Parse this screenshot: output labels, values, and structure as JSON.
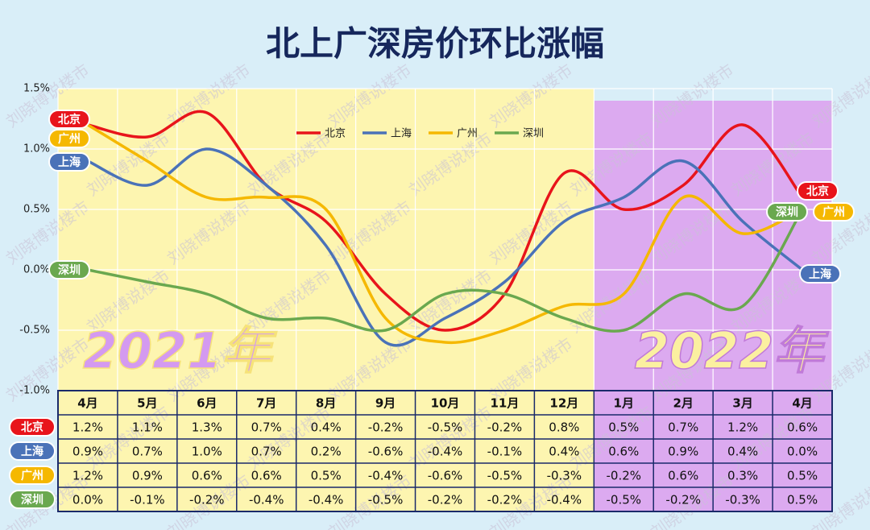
{
  "chart_data": {
    "type": "line",
    "title": "北上广深房价环比涨幅",
    "categories": [
      "4月",
      "5月",
      "6月",
      "7月",
      "8月",
      "9月",
      "10月",
      "11月",
      "12月",
      "1月",
      "2月",
      "3月",
      "4月"
    ],
    "series": [
      {
        "name": "北京",
        "color": "#e8141b",
        "values": [
          1.2,
          1.1,
          1.3,
          0.7,
          0.4,
          -0.2,
          -0.5,
          -0.2,
          0.8,
          0.5,
          0.7,
          1.2,
          0.6
        ],
        "value_labels": [
          "1.2%",
          "1.1%",
          "1.3%",
          "0.7%",
          "0.4%",
          "-0.2%",
          "-0.5%",
          "-0.2%",
          "0.8%",
          "0.5%",
          "0.7%",
          "1.2%",
          "0.6%"
        ]
      },
      {
        "name": "上海",
        "color": "#4a72b8",
        "values": [
          0.9,
          0.7,
          1.0,
          0.7,
          0.2,
          -0.6,
          -0.4,
          -0.1,
          0.4,
          0.6,
          0.9,
          0.4,
          0.0
        ],
        "value_labels": [
          "0.9%",
          "0.7%",
          "1.0%",
          "0.7%",
          "0.2%",
          "-0.6%",
          "-0.4%",
          "-0.1%",
          "0.4%",
          "0.6%",
          "0.9%",
          "0.4%",
          "0.0%"
        ]
      },
      {
        "name": "广州",
        "color": "#f5b800",
        "values": [
          1.2,
          0.9,
          0.6,
          0.6,
          0.5,
          -0.4,
          -0.6,
          -0.5,
          -0.3,
          -0.2,
          0.6,
          0.3,
          0.5
        ],
        "value_labels": [
          "1.2%",
          "0.9%",
          "0.6%",
          "0.6%",
          "0.5%",
          "-0.4%",
          "-0.6%",
          "-0.5%",
          "-0.3%",
          "-0.2%",
          "0.6%",
          "0.3%",
          "0.5%"
        ]
      },
      {
        "name": "深圳",
        "color": "#6aa84f",
        "values": [
          0.0,
          -0.1,
          -0.2,
          -0.4,
          -0.4,
          -0.5,
          -0.2,
          -0.2,
          -0.4,
          -0.5,
          -0.2,
          -0.3,
          0.5
        ],
        "value_labels": [
          "0.0%",
          "-0.1%",
          "-0.2%",
          "-0.4%",
          "-0.4%",
          "-0.5%",
          "-0.2%",
          "-0.2%",
          "-0.4%",
          "-0.5%",
          "-0.2%",
          "-0.3%",
          "0.5%"
        ]
      }
    ],
    "ylim": [
      -1.0,
      1.5
    ],
    "yticks": [
      {
        "value": -1.0,
        "label": "-1.0%"
      },
      {
        "value": -0.5,
        "label": "-0.5%"
      },
      {
        "value": 0.0,
        "label": "0.0%"
      },
      {
        "value": 0.5,
        "label": "0.5%"
      },
      {
        "value": 1.0,
        "label": "1.0%"
      },
      {
        "value": 1.5,
        "label": "1.5%"
      }
    ],
    "grid": true,
    "annotations": [
      "2021年",
      "2022年"
    ],
    "watermark": "刘晓博说楼市"
  }
}
